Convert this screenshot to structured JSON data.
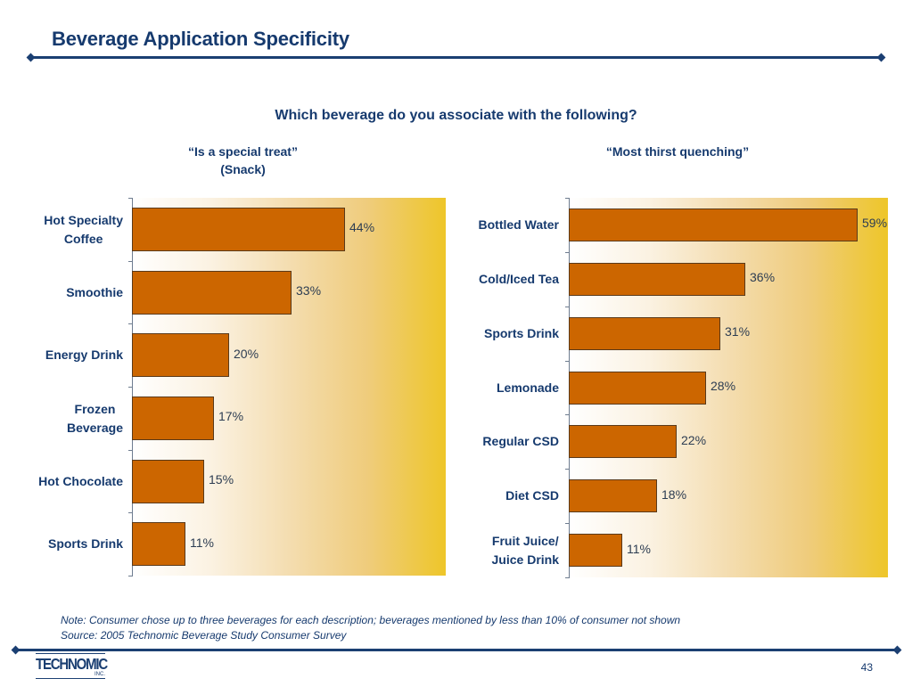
{
  "slide": {
    "title": "Beverage Application Specificity",
    "question": "Which beverage do you associate with the following?",
    "note": "Note: Consumer chose up to three beverages for each description; beverages mentioned by less than 10% of consumer not shown",
    "source": "Source: 2005 Technomic Beverage Study Consumer Survey",
    "page_number": "43",
    "logo": {
      "name": "TECHNOMIC",
      "suffix": "INC."
    }
  },
  "colors": {
    "bar": "#cc6600",
    "title": "#163a6e",
    "rule": "#1b3f72",
    "gradient_end": "#eec629"
  },
  "chart_data": [
    {
      "type": "bar",
      "orientation": "horizontal",
      "title": "“Is a special treat”",
      "subtitle": "(Snack)",
      "categories": [
        "Hot Specialty Coffee",
        "Smoothie",
        "Energy Drink",
        "Frozen Beverage",
        "Hot Chocolate",
        "Sports Drink"
      ],
      "category_lines": [
        [
          "Hot Specialty",
          "Coffee"
        ],
        [
          "Smoothie"
        ],
        [
          "Energy Drink"
        ],
        [
          "Frozen",
          "Beverage"
        ],
        [
          "Hot Chocolate"
        ],
        [
          "Sports Drink"
        ]
      ],
      "values": [
        44,
        33,
        20,
        17,
        15,
        11
      ],
      "labels": [
        "44%",
        "33%",
        "20%",
        "17%",
        "15%",
        "11%"
      ],
      "xlabel": "",
      "ylabel": "",
      "xlim": [
        0,
        65
      ],
      "grid": false,
      "legend": "none"
    },
    {
      "type": "bar",
      "orientation": "horizontal",
      "title": "“Most thirst quenching”",
      "subtitle": "",
      "categories": [
        "Bottled Water",
        "Cold/Iced Tea",
        "Sports Drink",
        "Lemonade",
        "Regular CSD",
        "Diet CSD",
        "Fruit Juice/Juice Drink"
      ],
      "category_lines": [
        [
          "Bottled Water"
        ],
        [
          "Cold/Iced Tea"
        ],
        [
          "Sports Drink"
        ],
        [
          "Lemonade"
        ],
        [
          "Regular CSD"
        ],
        [
          "Diet CSD"
        ],
        [
          "Fruit Juice/",
          "Juice Drink"
        ]
      ],
      "values": [
        59,
        36,
        31,
        28,
        22,
        18,
        11
      ],
      "labels": [
        "59%",
        "36%",
        "31%",
        "28%",
        "22%",
        "18%",
        "11%"
      ],
      "xlabel": "",
      "ylabel": "",
      "xlim": [
        0,
        65
      ],
      "grid": false,
      "legend": "none"
    }
  ]
}
